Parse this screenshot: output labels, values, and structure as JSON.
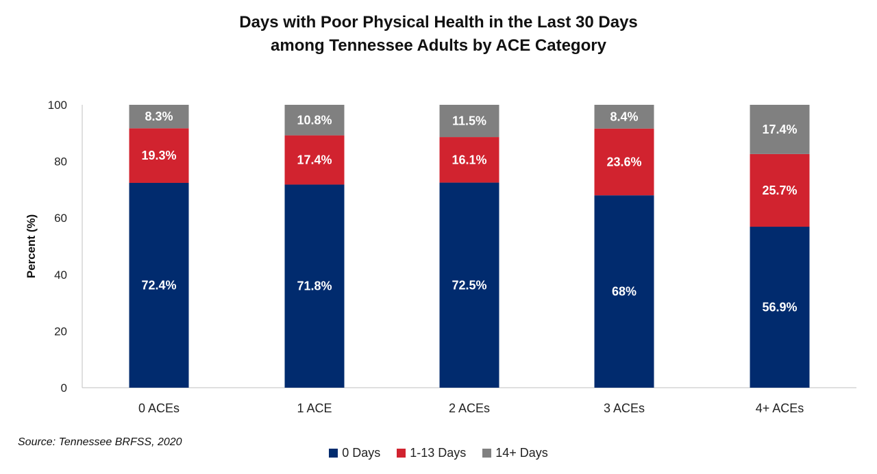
{
  "title_line1": "Days with Poor Physical Health in the Last 30 Days",
  "title_line2": "among Tennessee Adults by ACE Category",
  "source": "Source: Tennessee BRFSS, 2020",
  "chart_data": {
    "type": "bar",
    "stacked": true,
    "title": "Days with Poor Physical Health in the Last 30 Days among Tennessee Adults by ACE Category",
    "xlabel": "",
    "ylabel": "Percent (%)",
    "ylim": [
      0,
      100
    ],
    "yticks": [
      "0",
      "20",
      "40",
      "60",
      "80",
      "100"
    ],
    "categories": [
      "0 ACEs",
      "1 ACE",
      "2  ACEs",
      "3 ACEs",
      "4+ ACEs"
    ],
    "series": [
      {
        "name": "0 Days",
        "color": "#012B6E",
        "values": [
          72.4,
          71.8,
          72.5,
          68,
          56.9
        ],
        "labels": [
          "72.4%",
          "71.8%",
          "72.5%",
          "68%",
          "56.9%"
        ]
      },
      {
        "name": "1-13 Days",
        "color": "#D1232F",
        "values": [
          19.3,
          17.4,
          16.1,
          23.6,
          25.7
        ],
        "labels": [
          "19.3%",
          "17.4%",
          "16.1%",
          "23.6%",
          "25.7%"
        ]
      },
      {
        "name": "14+ Days",
        "color": "#808080",
        "values": [
          8.3,
          10.8,
          11.5,
          8.4,
          17.4
        ],
        "labels": [
          "8.3%",
          "10.8%",
          "11.5%",
          "8.4%",
          "17.4%"
        ]
      }
    ],
    "legend_position": "bottom",
    "grid": false
  }
}
